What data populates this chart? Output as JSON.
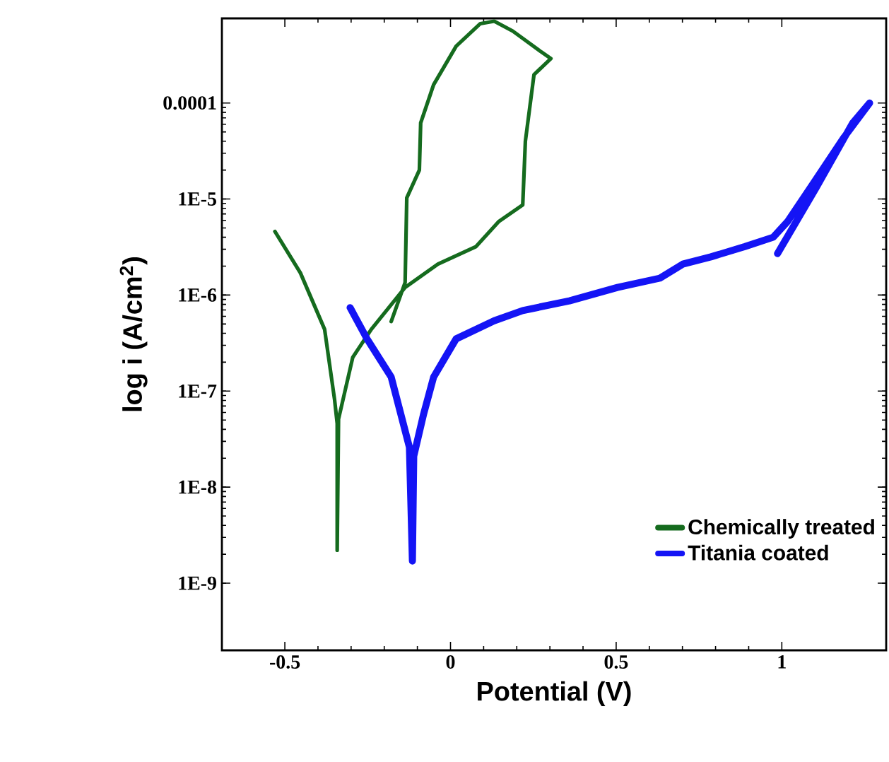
{
  "chart_data": {
    "type": "line",
    "xlabel": "Potential (V)",
    "ylabel": "log i (A/cm$^{2}$)",
    "xlim": [
      -0.69,
      1.315
    ],
    "ylim": [
      2e-10,
      0.00076
    ],
    "log": "y",
    "xticks": [
      -0.5,
      0,
      0.5,
      1
    ],
    "yticks": [
      {
        "value": 1e-09,
        "label": "1E-9"
      },
      {
        "value": 1e-08,
        "label": "1E-8"
      },
      {
        "value": 1e-07,
        "label": "1E-7"
      },
      {
        "value": 1e-06,
        "label": "1E-6"
      },
      {
        "value": 1e-05,
        "label": "1E-5"
      },
      0.0001
    ],
    "legend": "bottom right",
    "grid": false,
    "marker": "none",
    "line_style": "solid",
    "series": [
      {
        "name": "Chemically treated",
        "color": "#156b1e",
        "x": [
          -0.53,
          -0.453,
          -0.38,
          -0.35,
          -0.342,
          -0.342,
          -0.338,
          -0.295,
          -0.239,
          -0.137,
          -0.038,
          0.077,
          0.145,
          0.218,
          0.226,
          0.252,
          0.303,
          0.274,
          0.188,
          0.132,
          0.09,
          0.017,
          -0.051,
          -0.09,
          -0.094,
          -0.132,
          -0.137,
          -0.179
        ],
        "values": [
          4.6e-06,
          1.7e-06,
          4.4e-07,
          8.2e-08,
          4.6e-08,
          2.2e-09,
          5.1e-08,
          2.25e-07,
          4.4e-07,
          1.2e-06,
          2.1e-06,
          3.2e-06,
          5.8e-06,
          8.7e-06,
          4e-05,
          0.000197,
          0.00029,
          0.00034,
          0.00056,
          0.00071,
          0.00067,
          0.00039,
          0.000155,
          6.2e-05,
          2e-05,
          1.03e-05,
          1.35e-06,
          5.3e-07
        ]
      },
      {
        "name": "Titania coated",
        "color": "#1414f5",
        "x": [
          -0.303,
          -0.252,
          -0.179,
          -0.124,
          -0.115,
          -0.111,
          -0.081,
          -0.051,
          0.017,
          0.132,
          0.218,
          0.359,
          0.504,
          0.632,
          0.701,
          0.786,
          0.889,
          0.974,
          1.017,
          1.103,
          1.188,
          1.265,
          1.214,
          1.103,
          0.987
        ],
        "values": [
          7.4e-07,
          3.5e-07,
          1.4e-07,
          2.6e-08,
          1.7e-09,
          2.1e-08,
          5.8e-08,
          1.4e-07,
          3.5e-07,
          5.4e-07,
          6.9e-07,
          8.7e-07,
          1.2e-06,
          1.5e-06,
          2.1e-06,
          2.5e-06,
          3.2e-06,
          4e-06,
          5.8e-06,
          1.6e-05,
          4.4e-05,
          0.0001,
          6.2e-05,
          1.3e-05,
          2.7e-06
        ]
      }
    ]
  }
}
